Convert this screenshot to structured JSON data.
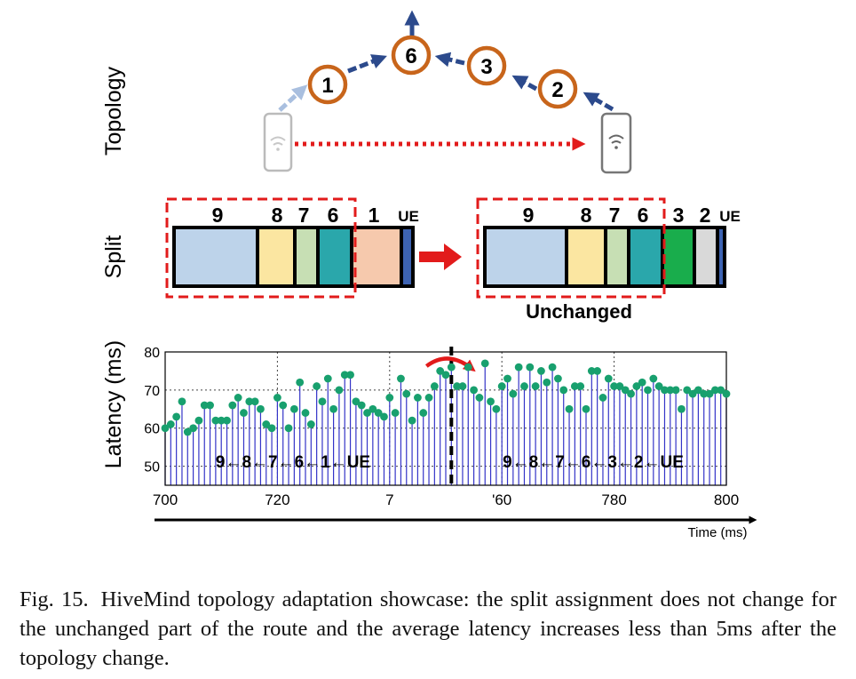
{
  "topology": {
    "row_label": "Topology",
    "nodes": [
      "1",
      "6",
      "3",
      "2"
    ]
  },
  "split": {
    "row_label": "Split",
    "before": [
      "9",
      "8",
      "7",
      "6",
      "1",
      "UE"
    ],
    "after": [
      "9",
      "8",
      "7",
      "6",
      "3",
      "2",
      "UE"
    ],
    "unchanged_label": "Unchanged"
  },
  "chart_data": {
    "type": "scatter",
    "style": "lollipop",
    "ylabel": "Latency (ms)",
    "xlabel": "Time (ms)",
    "xlim": [
      700,
      800
    ],
    "ylim": [
      45,
      80
    ],
    "yticks": [
      "50",
      "60",
      "70",
      "80"
    ],
    "xticks": [
      "700",
      "720",
      "7",
      "'60",
      "780",
      "800"
    ],
    "grid": true,
    "change_point": 751,
    "route_before": "9←8←7←6←1←UE",
    "route_after": "9←8←7←6←3←2←UE",
    "x": [
      700,
      701,
      702,
      703,
      704,
      705,
      706,
      707,
      708,
      709,
      710,
      711,
      712,
      713,
      714,
      715,
      716,
      717,
      718,
      719,
      720,
      721,
      722,
      723,
      724,
      725,
      726,
      727,
      728,
      729,
      730,
      731,
      732,
      733,
      734,
      735,
      736,
      737,
      738,
      739,
      740,
      741,
      742,
      743,
      744,
      745,
      746,
      747,
      748,
      749,
      750,
      751,
      752,
      753,
      754,
      755,
      756,
      757,
      758,
      759,
      760,
      761,
      762,
      763,
      764,
      765,
      766,
      767,
      768,
      769,
      770,
      771,
      772,
      773,
      774,
      775,
      776,
      777,
      778,
      779,
      780,
      781,
      782,
      783,
      784,
      785,
      786,
      787,
      788,
      789,
      790,
      791,
      792,
      793,
      794,
      795,
      796,
      797,
      798,
      799,
      800
    ],
    "values": [
      60,
      61,
      63,
      67,
      59,
      60,
      62,
      66,
      66,
      62,
      62,
      62,
      66,
      68,
      64,
      67,
      67,
      65,
      61,
      60,
      68,
      66,
      60,
      65,
      72,
      64,
      61,
      71,
      67,
      73,
      65,
      70,
      74,
      74,
      67,
      66,
      64,
      65,
      64,
      63,
      68,
      64,
      73,
      69,
      62,
      68,
      64,
      68,
      71,
      75,
      74,
      76,
      71,
      71,
      76,
      70,
      68,
      77,
      67,
      65,
      71,
      73,
      69,
      76,
      71,
      76,
      71,
      75,
      72,
      76,
      73,
      70,
      65,
      71,
      71,
      65,
      75,
      75,
      68,
      73,
      71,
      71,
      70,
      69,
      71,
      72,
      70,
      73,
      71,
      70,
      70,
      70,
      65,
      70,
      69,
      70,
      69,
      69,
      70,
      70,
      69
    ]
  },
  "caption": {
    "label": "Fig. 15.",
    "text": "HiveMind topology adaptation showcase: the split assignment does not change for the unchanged part of the route and the average latency increases less than 5ms after the topology change."
  }
}
